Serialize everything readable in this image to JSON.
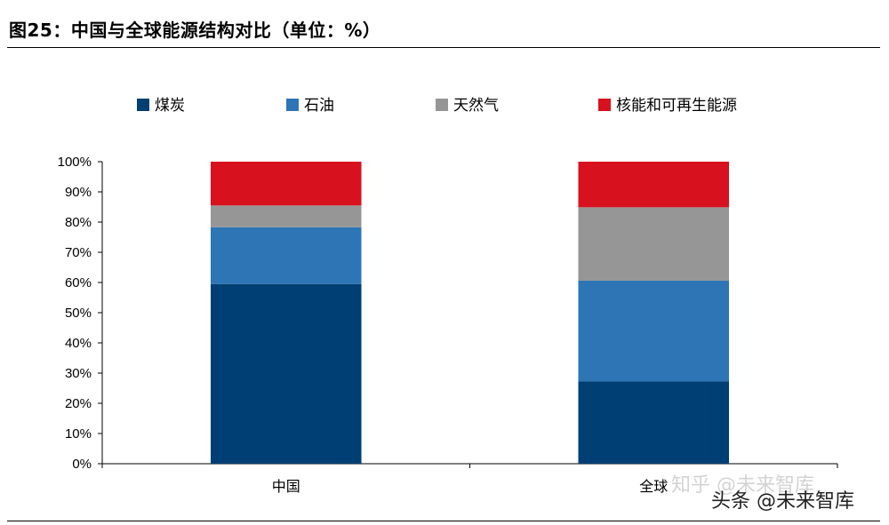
{
  "title": "图25：中国与全球能源结构对比（单位：%）",
  "watermark": {
    "zhihu": "知乎 @未来智库",
    "toutiao": "头条 @未来智库"
  },
  "chart_data": {
    "type": "bar",
    "stacked": true,
    "categories": [
      "中国",
      "全球"
    ],
    "series": [
      {
        "name": "煤炭",
        "color": "#003f73",
        "values": [
          59.5,
          27.3
        ]
      },
      {
        "name": "石油",
        "color": "#2e75b6",
        "values": [
          18.8,
          33.3
        ]
      },
      {
        "name": "天然气",
        "color": "#969696",
        "values": [
          7.2,
          24.3
        ]
      },
      {
        "name": "核能和可再生能源",
        "color": "#d7121e",
        "values": [
          14.5,
          15.1
        ]
      }
    ],
    "y_ticks": [
      "0%",
      "10%",
      "20%",
      "30%",
      "40%",
      "50%",
      "60%",
      "70%",
      "80%",
      "90%",
      "100%"
    ],
    "ylim": [
      0,
      100
    ],
    "legend_position": "top",
    "grid": false
  }
}
